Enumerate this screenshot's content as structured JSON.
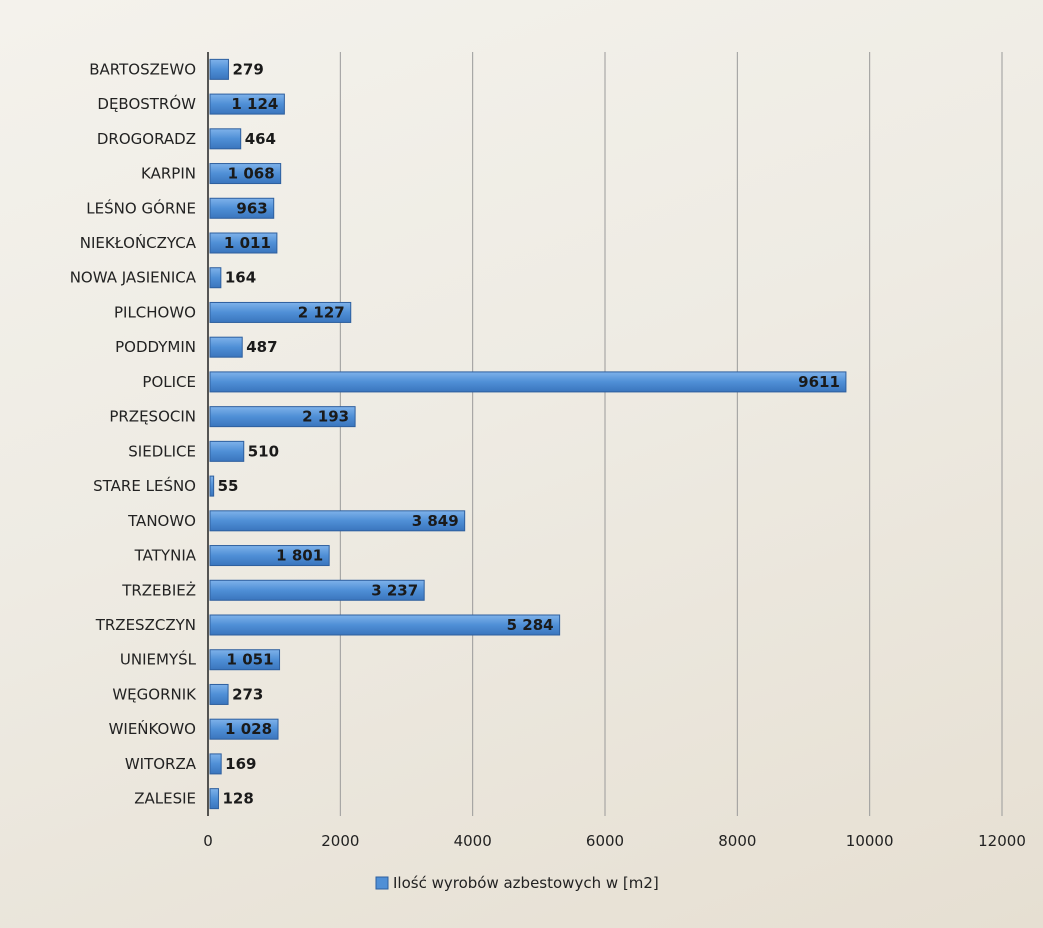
{
  "chart_data": {
    "type": "bar",
    "orientation": "horizontal",
    "categories": [
      "BARTOSZEWO",
      "DĘBOSTRÓW",
      "DROGORADZ",
      "KARPIN",
      "LEŚNO GÓRNE",
      "NIEKŁOŃCZYCA",
      "NOWA JASIENICA",
      "PILCHOWO",
      "PODDYMIN",
      "POLICE",
      "PRZĘSOCIN",
      "SIEDLICE",
      "STARE LEŚNO",
      "TANOWO",
      "TATYNIA",
      "TRZEBIEŻ",
      "TRZESZCZYN",
      "UNIEMYŚL",
      "WĘGORNIK",
      "WIEŃKOWO",
      "WITORZA",
      "ZALESIE"
    ],
    "series": [
      {
        "name": "Ilość wyrobów azbestowych w [m2]",
        "values": [
          279,
          1124,
          464,
          1068,
          963,
          1011,
          164,
          2127,
          487,
          9611,
          2193,
          510,
          55,
          3849,
          1801,
          3237,
          5284,
          1051,
          273,
          1028,
          169,
          128
        ],
        "labels": [
          "279",
          "1 124",
          "464",
          "1 068",
          "963",
          "1 011",
          "164",
          "2 127",
          "487",
          "9611",
          "2 193",
          "510",
          "55",
          "3 849",
          "1 801",
          "3 237",
          "5 284",
          "1 051",
          "273",
          "1 028",
          "169",
          "128"
        ],
        "color": "#4f8fd6"
      }
    ],
    "xlim": [
      0,
      12000
    ],
    "x_ticks": [
      "0",
      "2000",
      "4000",
      "6000",
      "8000",
      "10000",
      "12000"
    ],
    "grid": true,
    "legend_position": "bottom",
    "gridline_color": "#9a9a9a"
  }
}
